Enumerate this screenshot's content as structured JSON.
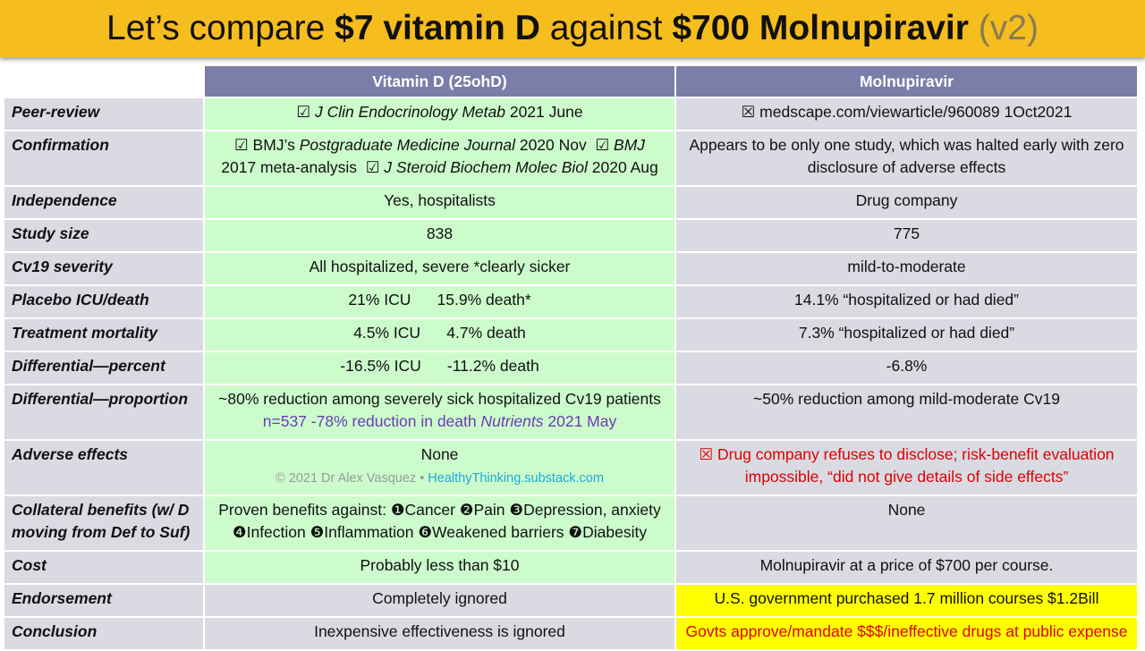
{
  "title": {
    "part1": "Let’s compare ",
    "part2": "$7 vitamin D",
    "part3": " against ",
    "part4": "$700 Molnupiravir",
    "part5": " (v2)"
  },
  "headers": {
    "vitamin": "Vitamin D (25ohD)",
    "molnupiravir": "Molnupiravir"
  },
  "rows": {
    "peer_review": {
      "label": "Peer-review",
      "vit_mark": "☑ ",
      "vit_journal": "J Clin Endocrinology Metab",
      "vit_date": " 2021 June",
      "mol": "☒ medscape.com/viewarticle/960089 1Oct2021"
    },
    "confirmation": {
      "label": "Confirmation",
      "vit_a": "☑ BMJ’s ",
      "vit_b": "Postgraduate Medicine Journal",
      "vit_c": " 2020 Nov  ☑ ",
      "vit_d": "BMJ",
      "vit_e": "2017 meta-analysis  ☑ ",
      "vit_f": "J Steroid Biochem Molec Biol",
      "vit_g": " 2020 Aug",
      "mol": "Appears to be only one study, which was halted early with zero disclosure of adverse effects"
    },
    "independence": {
      "label": "Independence",
      "vit": "Yes, hospitalists",
      "mol": "Drug company"
    },
    "study_size": {
      "label": "Study size",
      "vit": "838",
      "mol": "775"
    },
    "severity": {
      "label": "Cv19 severity",
      "vit": "All hospitalized, severe *clearly sicker",
      "mol": "mild-to-moderate"
    },
    "placebo": {
      "label": "Placebo ICU/death",
      "vit": "21% ICU      15.9% death*",
      "mol": "14.1% “hospitalized or had died”"
    },
    "treatment": {
      "label": "Treatment mortality",
      "vit": "4.5% ICU      4.7% death",
      "mol": "7.3% “hospitalized or had died”"
    },
    "diff_percent": {
      "label": "Differential—percent",
      "vit": "-16.5% ICU      -11.2% death",
      "mol": "-6.8%"
    },
    "diff_proportion": {
      "label": "Differential—proportion",
      "vit_line1": "~80% reduction among severely sick hospitalized Cv19 patients",
      "vit_line2a": "n=537 -78% reduction in death ",
      "vit_line2b": "Nutrients",
      "vit_line2c": " 2021 May",
      "mol": "~50% reduction among mild-moderate Cv19"
    },
    "adverse": {
      "label": "Adverse effects",
      "vit": "None",
      "credit_a": "© 2021 Dr Alex Vasquez • ",
      "credit_b": "HealthyThinking.substack.com",
      "mol": "☒ Drug company refuses to disclose; risk-benefit evaluation impossible, “did not give details of side effects”"
    },
    "collateral": {
      "label": "Collateral benefits (w/ D moving from Def to Suf)",
      "vit_line1": "Proven benefits against: ❶Cancer ❷Pain ❸Depression, anxiety",
      "vit_line2": "❹Infection ❺Inflammation ❻Weakened barriers ❼Diabesity",
      "mol": "None"
    },
    "cost": {
      "label": "Cost",
      "vit": "Probably less than $10",
      "mol": "Molnupiravir at a price of $700 per course."
    },
    "endorsement": {
      "label": "Endorsement",
      "vit": "Completely ignored",
      "mol": "U.S. government purchased 1.7 million courses $1.2Bill"
    },
    "conclusion": {
      "label": "Conclusion",
      "vit": "Inexpensive effectiveness is ignored",
      "mol": "Govts approve/mandate $$$/ineffective drugs at public expense"
    }
  },
  "colors": {
    "title_bg": "#f6bd1e",
    "header_bg": "#7b7ea8",
    "vitamin_bg": "#ccfccc",
    "gray_bg": "#d9dae2",
    "highlight": "#ffff00",
    "red": "#e00000"
  }
}
